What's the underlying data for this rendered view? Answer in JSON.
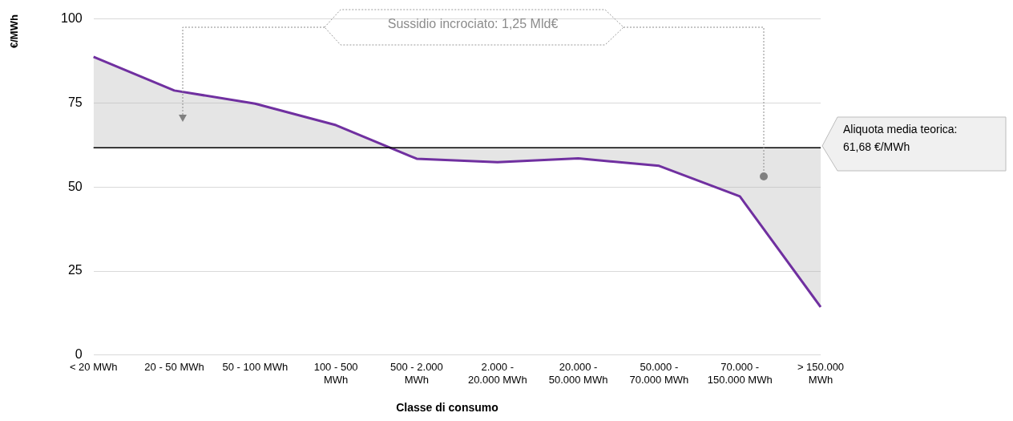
{
  "chart_data": {
    "type": "line",
    "categories": [
      "< 20 MWh",
      "20 - 50 MWh",
      "50 - 100 MWh",
      "100 - 500\nMWh",
      "500 - 2.000\nMWh",
      "2.000 -\n20.000 MWh",
      "20.000 -\n50.000 MWh",
      "50.000 -\n70.000 MWh",
      "70.000 -\n150.000 MWh",
      "> 150.000\nMWh"
    ],
    "series": [
      {
        "color": "#7030a0",
        "values": [
          88.7,
          78.7,
          74.8,
          68.4,
          58.4,
          57.4,
          58.5,
          56.3,
          47.2,
          14.3
        ]
      }
    ],
    "xlabel": "Classe di consumo",
    "ylabel": "€/MWh",
    "ylim": [
      0,
      100
    ],
    "yticks": [
      0,
      25,
      50,
      75,
      100
    ],
    "grid": "y",
    "ref_lines": [
      {
        "axis": "y",
        "value": 61.68,
        "label": "Aliquota media teorica:\n61,68 €/MWh",
        "color": "#000000"
      }
    ],
    "annotations": [
      "Sussidio incrociato: 1,25 Mld€"
    ],
    "marker": "none",
    "line_style": "solid",
    "legend": false
  }
}
